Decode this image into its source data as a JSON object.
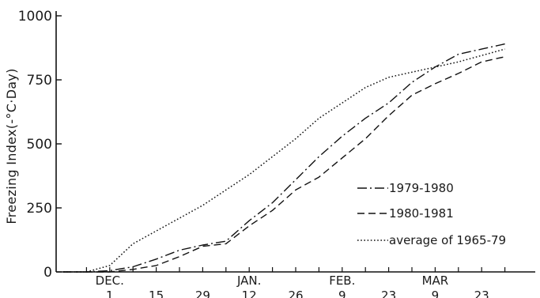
{
  "chart_data": {
    "type": "line",
    "title": "",
    "ylabel": "Freezing Index(-°C·Day)",
    "xlabel": "",
    "ylim": [
      0,
      1000
    ],
    "y_ticks": [
      0,
      250,
      500,
      750,
      1000
    ],
    "y_tick_labels": [
      "0",
      "250",
      "500",
      "750",
      "1000"
    ],
    "x_ticks": [
      "DEC. 1",
      "15",
      "29",
      "JAN. 12",
      "26",
      "FEB. 9",
      "23",
      "MAR 9",
      "23"
    ],
    "month_labels": [
      "DEC.",
      "JAN.",
      "FEB.",
      "MAR"
    ],
    "day_labels": [
      "1",
      "15",
      "29",
      "12",
      "26",
      "9",
      "23",
      "9",
      "23"
    ],
    "x": [
      "Nov 17",
      "Nov 24",
      "Dec 1",
      "Dec 8",
      "Dec 15",
      "Dec 22",
      "Dec 29",
      "Jan 5",
      "Jan 12",
      "Jan 19",
      "Jan 26",
      "Feb 2",
      "Feb 9",
      "Feb 16",
      "Feb 23",
      "Mar 2",
      "Mar 9",
      "Mar 16",
      "Mar 23",
      "Mar 30"
    ],
    "series": [
      {
        "name": "1979-1980",
        "dash": "dash-dot",
        "values": [
          0,
          0,
          5,
          20,
          50,
          85,
          105,
          120,
          200,
          270,
          360,
          450,
          530,
          600,
          660,
          740,
          800,
          850,
          870,
          890
        ]
      },
      {
        "name": "1980-1981",
        "dash": "dashed",
        "values": [
          0,
          0,
          0,
          10,
          25,
          60,
          100,
          110,
          180,
          240,
          320,
          370,
          445,
          520,
          610,
          690,
          735,
          775,
          820,
          840
        ]
      },
      {
        "name": "average of 1965-79",
        "dash": "dotted",
        "values": [
          0,
          0,
          25,
          110,
          160,
          210,
          260,
          320,
          380,
          450,
          520,
          600,
          660,
          720,
          760,
          780,
          800,
          820,
          845,
          870
        ]
      }
    ],
    "legend_position": "right",
    "grid": false
  }
}
